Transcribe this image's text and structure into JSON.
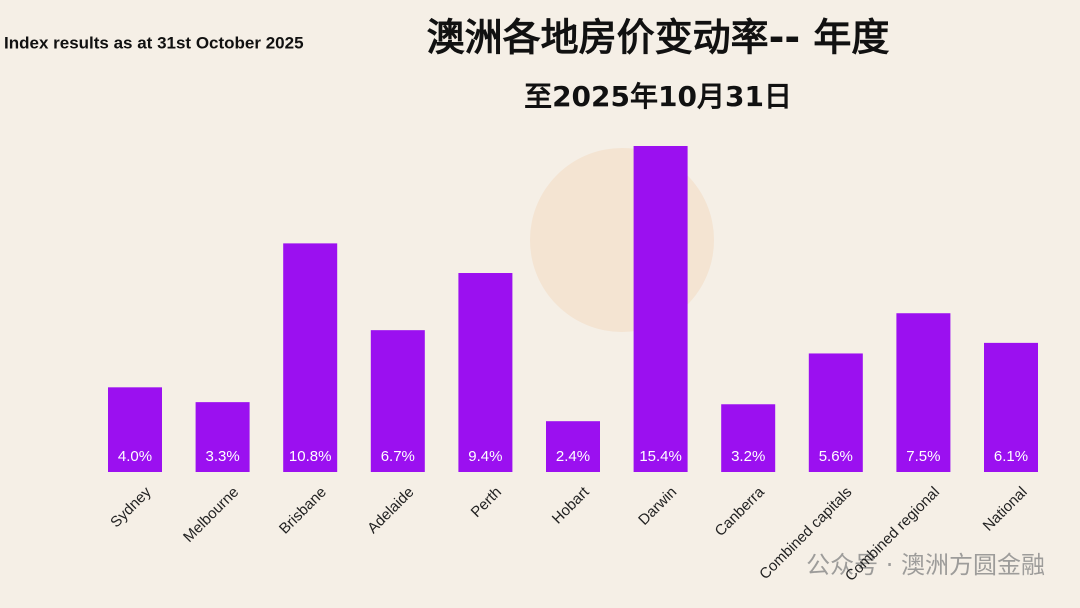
{
  "chart_data": {
    "type": "bar",
    "note": "Index results as at 31st October 2025",
    "title": "澳洲各地房价变动率-- 年度",
    "subtitle": "至2025年10月31日",
    "watermark": "公众号 · 澳洲方圆金融",
    "categories": [
      "Sydney",
      "Melbourne",
      "Brisbane",
      "Adelaide",
      "Perth",
      "Hobart",
      "Darwin",
      "Canberra",
      "Combined capitals",
      "Combined regional",
      "National"
    ],
    "values": [
      4.0,
      3.3,
      10.8,
      6.7,
      9.4,
      2.4,
      15.4,
      3.2,
      5.6,
      7.5,
      6.1
    ],
    "value_labels": [
      "4.0%",
      "3.3%",
      "10.8%",
      "6.7%",
      "9.4%",
      "2.4%",
      "15.4%",
      "3.2%",
      "5.6%",
      "7.5%",
      "6.1%"
    ],
    "color": "#9b10f0"
  }
}
